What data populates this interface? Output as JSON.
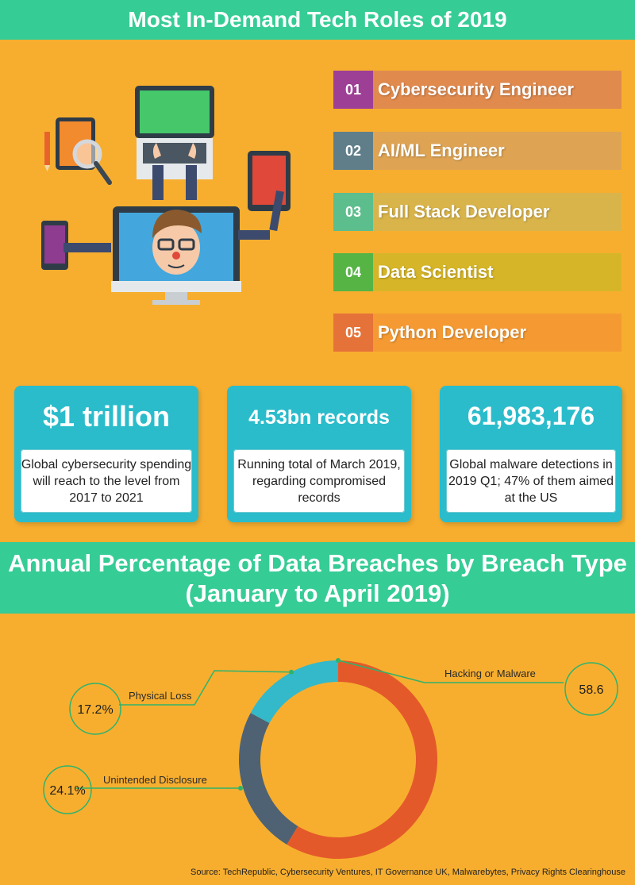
{
  "header": {
    "title": "Most In-Demand Tech Roles of 2019"
  },
  "roles": [
    {
      "num": "01",
      "label": "Cybersecurity Engineer",
      "num_color": "#9E3F96",
      "bar_color": "#E08A4E"
    },
    {
      "num": "02",
      "label": "AI/ML Engineer",
      "num_color": "#5F7E8A",
      "bar_color": "#DEA454"
    },
    {
      "num": "03",
      "label": "Full Stack Developer",
      "num_color": "#5CBE8C",
      "bar_color": "#D9B44B"
    },
    {
      "num": "04",
      "label": "Data Scientist",
      "num_color": "#56B445",
      "bar_color": "#D6B628"
    },
    {
      "num": "05",
      "label": "Python Developer",
      "num_color": "#E57238",
      "bar_color": "#F59A33"
    }
  ],
  "stats": [
    {
      "value": "$1 trillion",
      "desc": "Global cybersecurity spending will reach to the level from 2017 to 2021"
    },
    {
      "value": "4.53bn records",
      "desc": "Running total of March 2019, regarding compromised records"
    },
    {
      "value": "61,983,176",
      "desc": "Global malware detections in 2019 Q1; 47% of them aimed at the US"
    }
  ],
  "chart_section": {
    "title_line1": "Annual Percentage of Data Breaches by Breach Type",
    "title_line2": "(January to April 2019)"
  },
  "chart_data": {
    "type": "pie",
    "donut": true,
    "slices": [
      {
        "label": "Hacking or Malware",
        "value": 58.6,
        "display": "58.6",
        "color": "#E4592A"
      },
      {
        "label": "Unintended Disclosure",
        "value": 24.1,
        "display": "24.1%",
        "color": "#4E6274"
      },
      {
        "label": "Physical Loss",
        "value": 17.2,
        "display": "17.2%",
        "color": "#33B9C9"
      }
    ]
  },
  "source": "Source: TechRepublic, Cybersecurity Ventures, IT Governance UK, Malwarebytes, Privacy Rights Clearinghouse"
}
